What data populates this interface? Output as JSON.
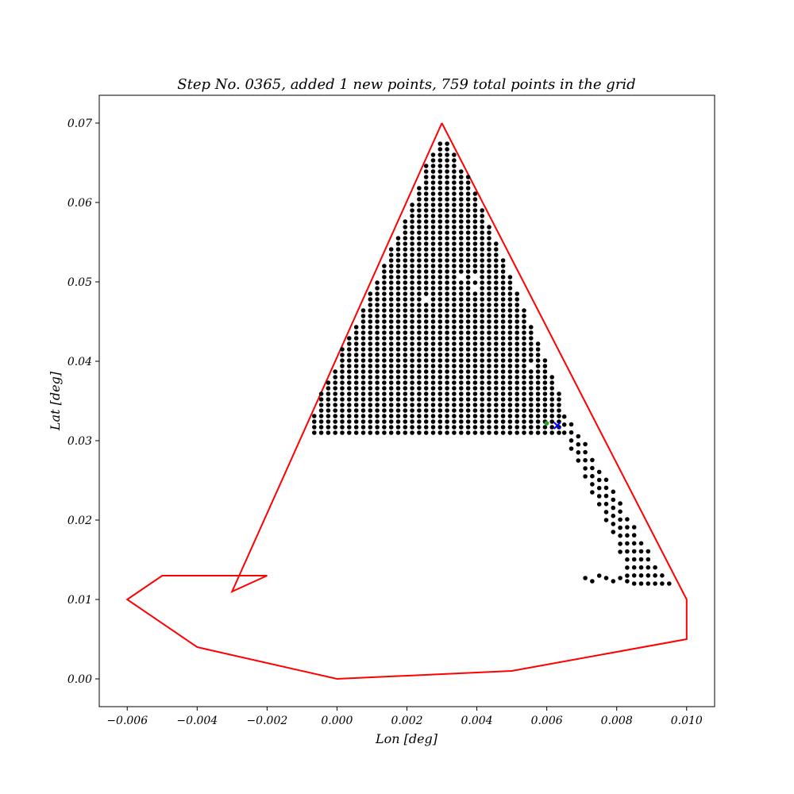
{
  "chart_data": {
    "type": "scatter",
    "title": "Step No. 0365, added 1 new points, 759 total points in the grid",
    "xlabel": "Lon [deg]",
    "ylabel": "Lat [deg]",
    "xlim": [
      -0.0068,
      0.0108
    ],
    "ylim": [
      -0.0035,
      0.0735
    ],
    "xticks": [
      -0.006,
      -0.004,
      -0.002,
      0.0,
      0.002,
      0.004,
      0.006,
      0.008,
      0.01
    ],
    "xtick_labels": [
      "−0.006",
      "−0.004",
      "−0.002",
      "0.000",
      "0.002",
      "0.004",
      "0.006",
      "0.008",
      "0.010"
    ],
    "yticks": [
      0.0,
      0.01,
      0.02,
      0.03,
      0.04,
      0.05,
      0.06,
      0.07
    ],
    "ytick_labels": [
      "0.00",
      "0.01",
      "0.02",
      "0.03",
      "0.04",
      "0.05",
      "0.06",
      "0.07"
    ],
    "grid": false,
    "boundary_polygon": {
      "color": "#ff0000",
      "x": [
        0.003,
        0.01,
        0.01,
        0.005,
        0.0,
        -0.004,
        -0.006,
        -0.005,
        -0.002,
        -0.003,
        0.003
      ],
      "y": [
        0.07,
        0.01,
        0.005,
        0.001,
        0.0,
        0.004,
        0.01,
        0.013,
        0.013,
        0.011,
        0.07
      ]
    },
    "grid_points": {
      "color": "#000000",
      "description_count": 759,
      "columns_x": [
        -0.00065,
        -0.00045,
        -0.00025,
        -5e-05,
        0.00015,
        0.00035,
        0.00055,
        0.00075,
        0.00095,
        0.00115,
        0.00135,
        0.00155,
        0.00175,
        0.00195,
        0.00215,
        0.00235,
        0.00255,
        0.00275,
        0.00295,
        0.00315,
        0.00335,
        0.00355,
        0.00375,
        0.00395,
        0.00415,
        0.00435,
        0.00455,
        0.00475,
        0.00495,
        0.00515,
        0.00535,
        0.00555,
        0.00575,
        0.00595,
        0.00615,
        0.00635
      ],
      "columns_top_y": [
        0.0335,
        0.0362,
        0.0376,
        0.039,
        0.0417,
        0.043,
        0.0444,
        0.0464,
        0.0485,
        0.0505,
        0.0525,
        0.0545,
        0.056,
        0.058,
        0.06,
        0.062,
        0.065,
        0.0665,
        0.068,
        0.068,
        0.066,
        0.0645,
        0.0635,
        0.0615,
        0.0595,
        0.057,
        0.055,
        0.053,
        0.051,
        0.049,
        0.0465,
        0.0445,
        0.0425,
        0.0405,
        0.038,
        0.0365
      ],
      "bottom_y": 0.031,
      "row_spacing": 0.0007,
      "tail_columns_x": [
        0.0065,
        0.0067,
        0.0069,
        0.0071,
        0.0073,
        0.0075,
        0.0077,
        0.0079,
        0.0081,
        0.0083,
        0.0085,
        0.0087,
        0.0089,
        0.0091,
        0.0093,
        0.0095
      ],
      "tail_columns_top_y": [
        0.0335,
        0.0325,
        0.031,
        0.03,
        0.0285,
        0.027,
        0.0255,
        0.024,
        0.0225,
        0.021,
        0.0195,
        0.018,
        0.0165,
        0.015,
        0.0135,
        0.013
      ],
      "tail_columns_bottom_y": [
        0.031,
        0.029,
        0.0275,
        0.0255,
        0.0235,
        0.022,
        0.02,
        0.0185,
        0.016,
        0.013,
        0.012,
        0.012,
        0.012,
        0.012,
        0.012,
        0.012
      ],
      "tail_bottom_row": {
        "x": [
          0.0071,
          0.0073,
          0.0075,
          0.0077,
          0.0079,
          0.0081,
          0.0083
        ],
        "y": [
          0.0127,
          0.0123,
          0.013,
          0.0127,
          0.0123,
          0.0127,
          0.0123
        ]
      },
      "gaps": [
        [
          0.0025,
          0.0475
        ],
        [
          0.0035,
          0.0505
        ],
        [
          0.004,
          0.0505
        ],
        [
          0.004,
          0.0495
        ],
        [
          0.0055,
          0.0395
        ]
      ]
    },
    "highlight_points": [
      {
        "name": "new point",
        "x": 0.006,
        "y": 0.0322,
        "color": "#22aa22",
        "marker": "dot"
      },
      {
        "name": "current point",
        "x": 0.0063,
        "y": 0.0319,
        "color": "#0000ff",
        "marker": "x"
      }
    ]
  }
}
